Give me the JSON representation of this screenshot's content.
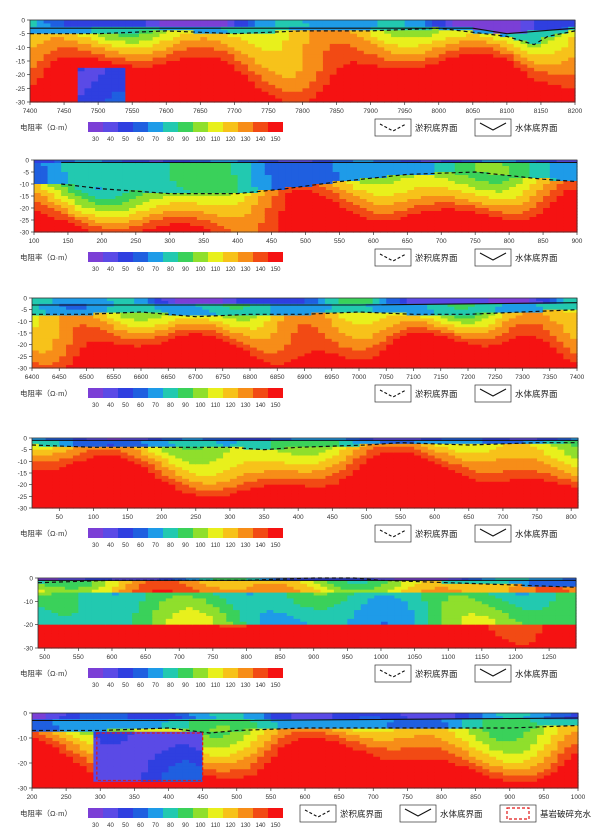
{
  "colorbar": {
    "label": "电阻率（Ω·m）",
    "ticks": [
      "30",
      "40",
      "50",
      "60",
      "70",
      "80",
      "90",
      "100",
      "110",
      "120",
      "130",
      "140",
      "150"
    ],
    "colors": [
      "#7b3fd6",
      "#5a4ae6",
      "#2f3fe0",
      "#1f5fe0",
      "#1e9be8",
      "#22c9b0",
      "#3ad15a",
      "#8fdf2c",
      "#e8f01c",
      "#f7c21a",
      "#f78d18",
      "#f24a14",
      "#f51212"
    ]
  },
  "legend": {
    "sediment": "淤积底界面",
    "water": "水体底界面",
    "bedrock": "基岩破碎充水"
  },
  "chart_data": [
    {
      "type": "heatmap",
      "xlim": [
        7400,
        8200
      ],
      "ylim": [
        -30,
        0
      ],
      "xticks": [
        7400,
        7450,
        7500,
        7550,
        7600,
        7650,
        7700,
        7750,
        7800,
        7850,
        7900,
        7950,
        8000,
        8050,
        8100,
        8150,
        8200
      ],
      "yticks": [
        0,
        -5,
        -10,
        -15,
        -20,
        -25,
        -30
      ],
      "water_bottom": [
        [
          7400,
          -3
        ],
        [
          7600,
          -3
        ],
        [
          7800,
          -3
        ],
        [
          8050,
          -3
        ],
        [
          8100,
          -5
        ],
        [
          8150,
          -4
        ],
        [
          8200,
          -3
        ]
      ],
      "sediment_bottom": [
        [
          7400,
          -5
        ],
        [
          7500,
          -5
        ],
        [
          7600,
          -4
        ],
        [
          7700,
          -5
        ],
        [
          7800,
          -4
        ],
        [
          7900,
          -4
        ],
        [
          8000,
          -3
        ],
        [
          8100,
          -6
        ],
        [
          8140,
          -9
        ],
        [
          8160,
          -6
        ],
        [
          8200,
          -4
        ]
      ],
      "anomalies": []
    },
    {
      "type": "heatmap",
      "xlim": [
        100,
        900
      ],
      "ylim": [
        -30,
        0
      ],
      "xticks": [
        100,
        150,
        200,
        250,
        300,
        350,
        400,
        450,
        500,
        550,
        600,
        650,
        700,
        750,
        800,
        850,
        900
      ],
      "yticks": [
        0,
        -5,
        -10,
        -15,
        -20,
        -25,
        -30
      ],
      "water_bottom": [
        [
          140,
          -1
        ],
        [
          400,
          -1
        ],
        [
          600,
          -1
        ],
        [
          800,
          -1
        ],
        [
          900,
          -1
        ]
      ],
      "sediment_bottom": [
        [
          140,
          -10
        ],
        [
          200,
          -12
        ],
        [
          300,
          -14
        ],
        [
          400,
          -14
        ],
        [
          470,
          -12
        ],
        [
          550,
          -9
        ],
        [
          650,
          -6
        ],
        [
          750,
          -5
        ],
        [
          850,
          -8
        ],
        [
          900,
          -9
        ]
      ],
      "anomalies": []
    },
    {
      "type": "heatmap",
      "xlim": [
        6400,
        7400
      ],
      "ylim": [
        -30,
        0
      ],
      "xticks": [
        6400,
        6450,
        6500,
        6550,
        6600,
        6650,
        6700,
        6750,
        6800,
        6850,
        6900,
        6950,
        7000,
        7050,
        7100,
        7150,
        7200,
        7250,
        7300,
        7350,
        7400
      ],
      "yticks": [
        0,
        -5,
        -10,
        -15,
        -20,
        -25,
        -30
      ],
      "water_bottom": [
        [
          6400,
          -3
        ],
        [
          6700,
          -3
        ],
        [
          7000,
          -3
        ],
        [
          7400,
          -2
        ]
      ],
      "sediment_bottom": [
        [
          6400,
          -7
        ],
        [
          6500,
          -7
        ],
        [
          6600,
          -6
        ],
        [
          6700,
          -8
        ],
        [
          6800,
          -7
        ],
        [
          6900,
          -7
        ],
        [
          7000,
          -6
        ],
        [
          7100,
          -7
        ],
        [
          7200,
          -7
        ],
        [
          7300,
          -6
        ],
        [
          7400,
          -5
        ]
      ],
      "anomalies": []
    },
    {
      "type": "heatmap",
      "xlim": [
        10,
        810
      ],
      "ylim": [
        -30,
        0
      ],
      "xticks": [
        50,
        100,
        150,
        200,
        250,
        300,
        350,
        400,
        450,
        500,
        550,
        600,
        650,
        700,
        750,
        800
      ],
      "yticks": [
        0,
        -5,
        -10,
        -15,
        -20,
        -25,
        -30
      ],
      "water_bottom": [
        [
          10,
          -1
        ],
        [
          400,
          -1
        ],
        [
          810,
          -1
        ]
      ],
      "sediment_bottom": [
        [
          10,
          -3
        ],
        [
          100,
          -4
        ],
        [
          200,
          -4
        ],
        [
          300,
          -4
        ],
        [
          350,
          -5
        ],
        [
          400,
          -4
        ],
        [
          500,
          -3
        ],
        [
          550,
          -2
        ],
        [
          650,
          -3
        ],
        [
          750,
          -2
        ],
        [
          810,
          -2
        ]
      ],
      "anomalies": []
    },
    {
      "type": "heatmap",
      "xlim": [
        490,
        1290
      ],
      "ylim": [
        -30,
        0
      ],
      "xticks": [
        500,
        550,
        600,
        650,
        700,
        750,
        800,
        850,
        900,
        950,
        1000,
        1050,
        1100,
        1150,
        1200,
        1250
      ],
      "yticks": [
        0,
        -10,
        -20,
        -30
      ],
      "water_bottom": [
        [
          490,
          -1
        ],
        [
          800,
          -1
        ],
        [
          1290,
          -1
        ]
      ],
      "sediment_bottom": [
        [
          490,
          -2
        ],
        [
          600,
          -1
        ],
        [
          700,
          -1
        ],
        [
          800,
          -1
        ],
        [
          900,
          0
        ],
        [
          960,
          0
        ],
        [
          1000,
          -1
        ],
        [
          1100,
          -2
        ],
        [
          1200,
          -3
        ],
        [
          1290,
          -4
        ]
      ],
      "anomalies": []
    },
    {
      "type": "heatmap",
      "xlim": [
        200,
        1000
      ],
      "ylim": [
        -30,
        0
      ],
      "xticks": [
        200,
        250,
        300,
        350,
        400,
        450,
        500,
        550,
        600,
        650,
        700,
        750,
        800,
        850,
        900,
        950,
        1000
      ],
      "yticks": [
        0,
        -10,
        -20,
        -30
      ],
      "water_bottom": [
        [
          200,
          -3
        ],
        [
          500,
          -3
        ],
        [
          1000,
          -2
        ]
      ],
      "sediment_bottom": [
        [
          200,
          -7
        ],
        [
          300,
          -7
        ],
        [
          400,
          -6
        ],
        [
          460,
          -8
        ],
        [
          500,
          -7
        ],
        [
          600,
          -6
        ],
        [
          700,
          -6
        ],
        [
          800,
          -6
        ],
        [
          900,
          -6
        ],
        [
          1000,
          -5
        ]
      ],
      "anomalies": [
        [
          295,
          450,
          -8,
          -27
        ]
      ]
    }
  ]
}
